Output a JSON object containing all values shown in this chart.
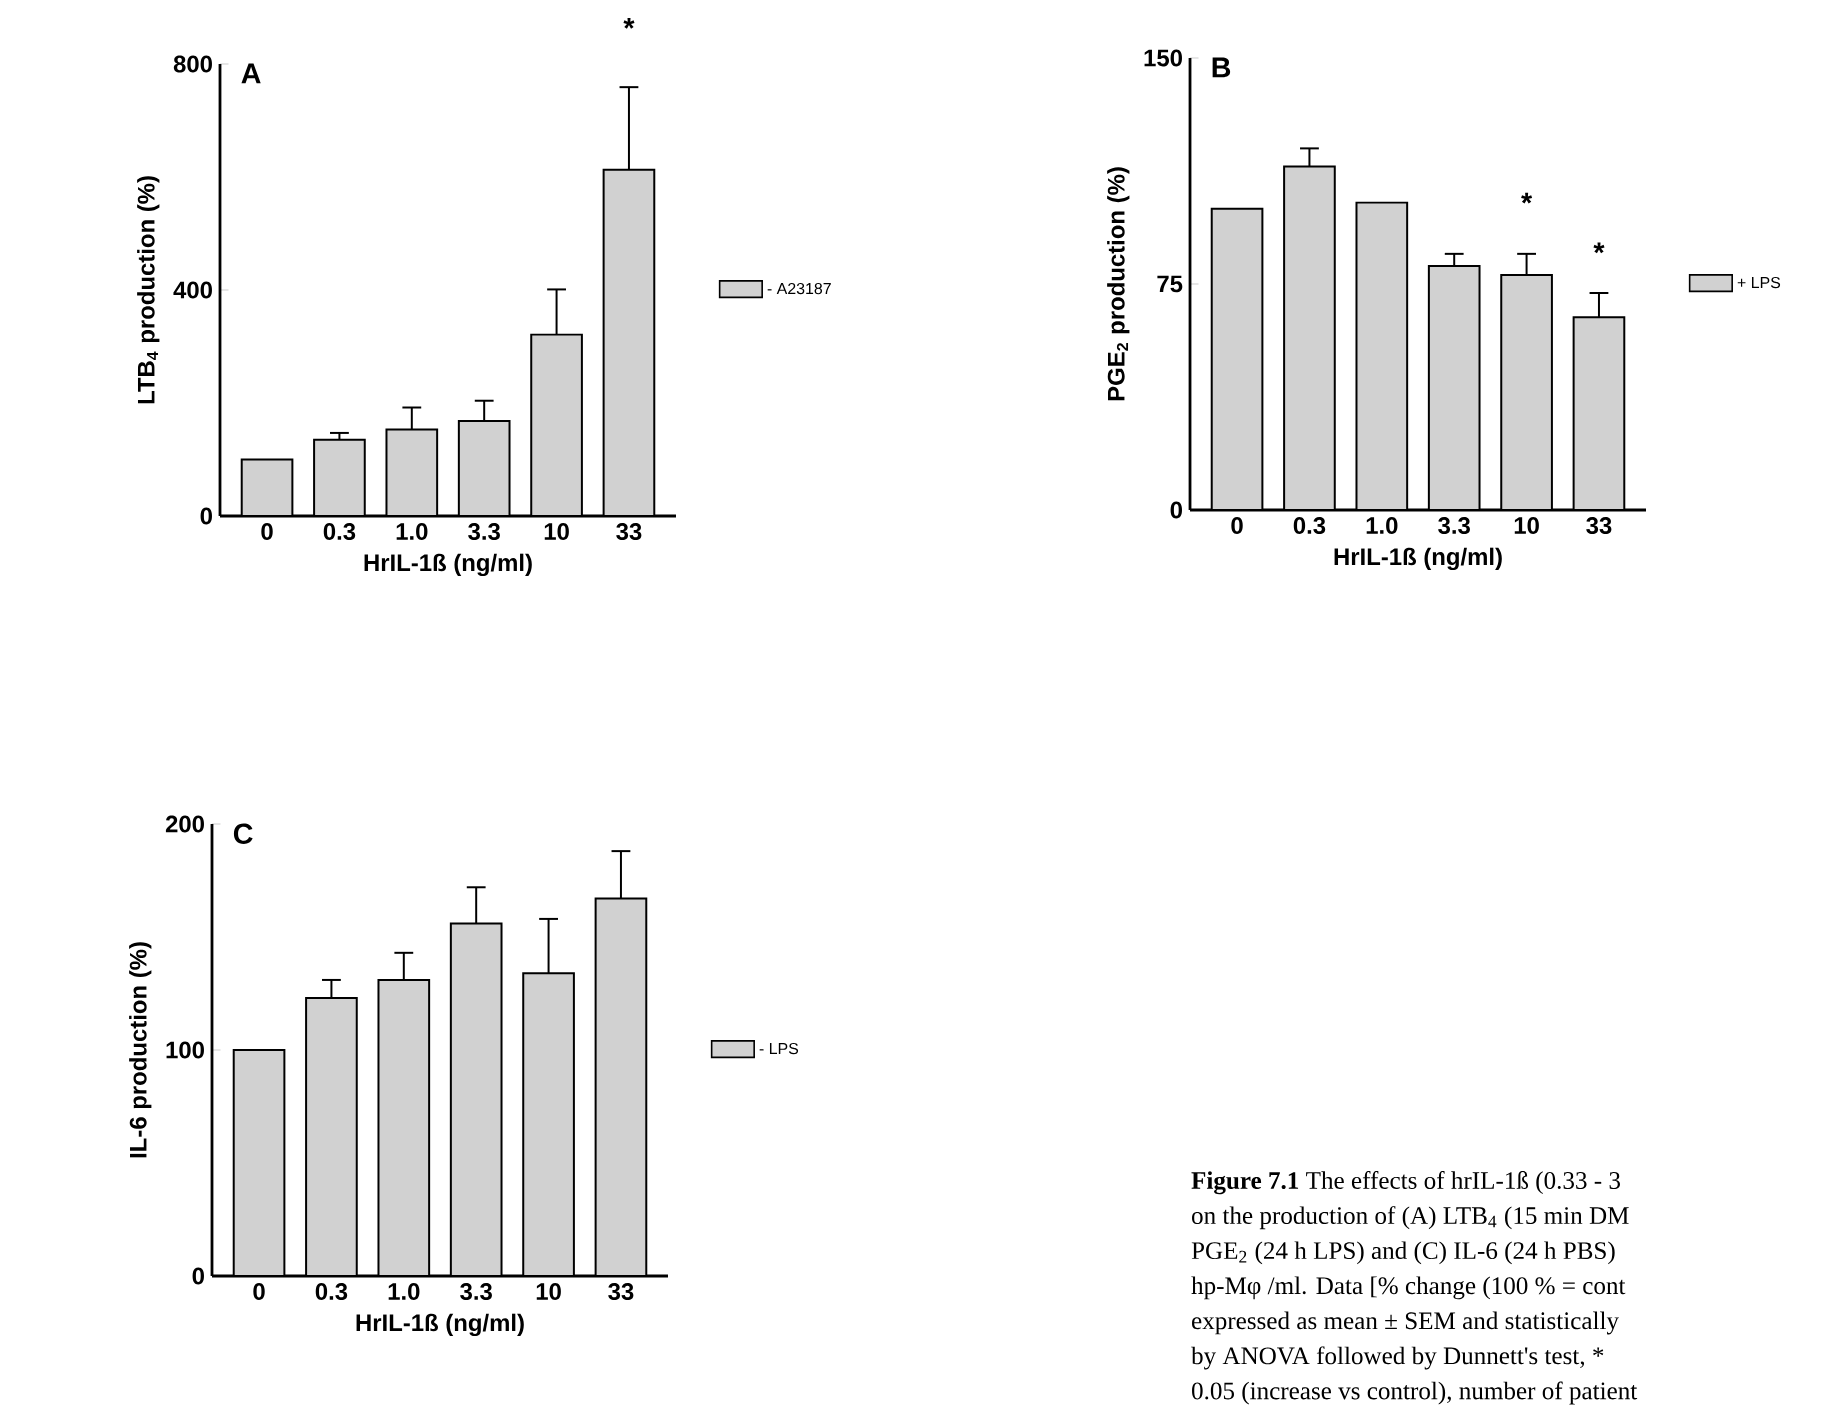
{
  "chart_data": [
    {
      "type": "bar",
      "title": "A",
      "xlabel": "HrIL-1ß (ng/ml)",
      "ylabel": "LTB$_{4}$ production (%)",
      "categories": [
        "0",
        "0.3",
        "1.0",
        "3.3",
        "10",
        "33"
      ],
      "series": [
        {
          "name": "- A23187",
          "color": "#000000",
          "values": [
            100,
            135,
            153,
            168,
            321,
            613
          ],
          "errors": [
            null,
            12,
            39,
            36,
            80,
            146
          ]
        }
      ],
      "ylim": [
        0,
        800
      ],
      "yticks": [
        0,
        400,
        800
      ],
      "legend": "right",
      "annotations": [
        "*"
      ]
    },
    {
      "type": "bar",
      "title": "B",
      "xlabel": "HrIL-1ß (ng/ml)",
      "ylabel": "PGE$_{2}$ production (%)",
      "categories": [
        "0",
        "0.3",
        "1.0",
        "3.3",
        "10",
        "33"
      ],
      "series": [
        {
          "name": "+ LPS",
          "color": "#000000",
          "values": [
            100,
            114,
            102,
            81,
            78,
            64
          ],
          "errors": [
            null,
            6,
            null,
            4,
            7,
            8
          ]
        }
      ],
      "ylim": [
        0,
        150
      ],
      "yticks": [
        0,
        75,
        150
      ],
      "legend": "right",
      "annotations": [
        "*",
        "*"
      ]
    },
    {
      "type": "bar",
      "title": "C",
      "xlabel": "HrIL-1ß (ng/ml)",
      "ylabel": "IL-6 production (%)",
      "categories": [
        "0",
        "0.3",
        "1.0",
        "3.3",
        "10",
        "33"
      ],
      "series": [
        {
          "name": "- LPS",
          "color": "#000000",
          "values": [
            100,
            123,
            131,
            156,
            134,
            167
          ],
          "errors": [
            null,
            8,
            12,
            16,
            24,
            21
          ]
        }
      ],
      "ylim": [
        0,
        200
      ],
      "yticks": [
        0,
        100,
        200
      ],
      "legend": "right"
    },
    {
      "type": "other",
      "annotations": [
        "**Figure 7.1** The effects of hrIL-1ß (0.33 - 3",
        "on the production of (A) LTB$_{4}$ (15 min DM",
        "PGE$_{2}$ (24 h LPS) and (C) IL-6 (24 h PBS)",
        "hp-Mφ /ml. Data [% change (100 % = cont",
        "expressed as mean ± SEM and statistically",
        "by ANOVA followed by Dunnett's test, *",
        "0.05 (increase vs control), number of patient"
      ]
    }
  ]
}
